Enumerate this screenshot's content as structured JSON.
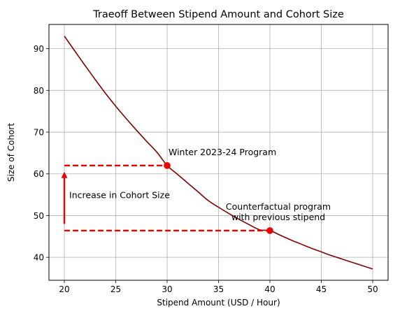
{
  "chart_data": {
    "type": "line",
    "title": "Traeoff Between Stipend Amount and Cohort Size",
    "xlabel": "Stipend Amount (USD / Hour)",
    "ylabel": "Size of Cohort",
    "xlim": [
      18.5,
      51.5
    ],
    "ylim": [
      34.5,
      95.8
    ],
    "xticks": [
      20,
      25,
      30,
      35,
      40,
      45,
      50
    ],
    "yticks": [
      40,
      50,
      60,
      70,
      80,
      90
    ],
    "grid": true,
    "curve": {
      "color": "#800000",
      "x": [
        20,
        21,
        22,
        23,
        24,
        25,
        26,
        27,
        28,
        29,
        30,
        31,
        32,
        33,
        34,
        35,
        36,
        37,
        38,
        39,
        40,
        41,
        42,
        43,
        44,
        45,
        46,
        47,
        48,
        49,
        50
      ],
      "y": [
        93.0,
        89.5,
        86.0,
        82.6,
        79.3,
        76.2,
        73.3,
        70.5,
        67.8,
        65.2,
        62.0,
        59.9,
        57.8,
        55.7,
        53.6,
        52.0,
        50.5,
        49.1,
        47.8,
        46.6,
        46.4,
        45.3,
        44.2,
        43.2,
        42.2,
        41.3,
        40.4,
        39.6,
        38.8,
        38.0,
        37.2
      ]
    },
    "points": [
      {
        "x": 30,
        "y": 62.0,
        "label": "Winter 2023-24 Program"
      },
      {
        "x": 40,
        "y": 46.4,
        "label_lines": [
          "Counterfactual program",
          "with previous stipend"
        ]
      }
    ],
    "dashed_lines": [
      {
        "x1": 20,
        "x2": 30,
        "y": 62.0
      },
      {
        "x1": 20,
        "x2": 40,
        "y": 46.4
      }
    ],
    "arrow": {
      "x": 20,
      "y_from": 48,
      "y_to": 60.5,
      "label": "Increase in Cohort Size"
    },
    "accent_color": "#ee0000"
  }
}
